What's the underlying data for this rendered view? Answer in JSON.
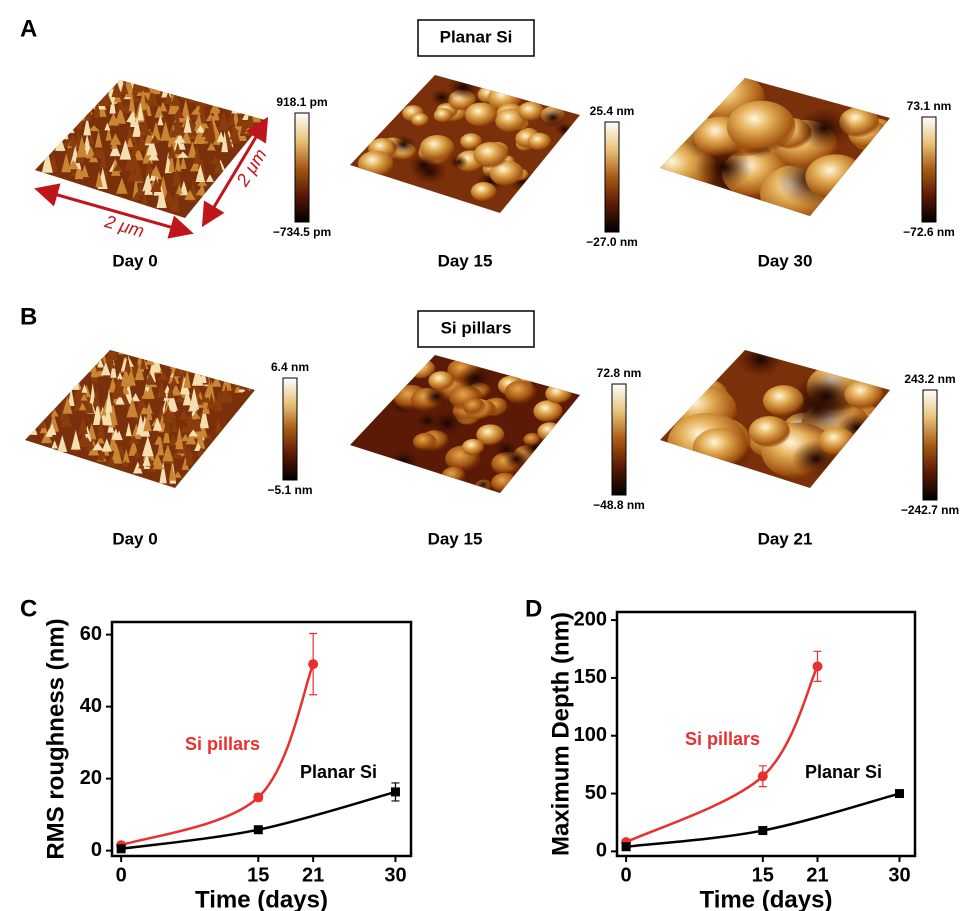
{
  "panel_a": {
    "label": "A",
    "title": "Planar Si",
    "scale_x": "2 μm",
    "scale_y": "2 μm",
    "images": [
      {
        "caption": "Day 0",
        "max": "918.1 pm",
        "min": "−734.5 pm"
      },
      {
        "caption": "Day 15",
        "max": "25.4 nm",
        "min": "−27.0 nm"
      },
      {
        "caption": "Day 30",
        "max": "73.1 nm",
        "min": "−72.6 nm"
      }
    ]
  },
  "panel_b": {
    "label": "B",
    "title": "Si pillars",
    "images": [
      {
        "caption": "Day 0",
        "max": "6.4 nm",
        "min": "−5.1 nm"
      },
      {
        "caption": "Day 15",
        "max": "72.8 nm",
        "min": "−48.8 nm"
      },
      {
        "caption": "Day 21",
        "max": "243.2 nm",
        "min": "−242.7 nm"
      }
    ]
  },
  "chart_data": [
    {
      "type": "line",
      "panel": "C",
      "xlabel": "Time (days)",
      "ylabel": "RMS roughness (nm)",
      "xlim": [
        -1,
        31.7
      ],
      "xticks": [
        0,
        15,
        21,
        30
      ],
      "ylim": [
        -1.5,
        63.5
      ],
      "yticks": [
        0,
        20,
        40,
        60
      ],
      "series": [
        {
          "name": "Si pillars",
          "color": "#e8302f",
          "marker": "circle",
          "x": [
            0,
            15,
            21
          ],
          "values": [
            1.5,
            14.8,
            51.8
          ],
          "errors": [
            0.3,
            1,
            8.5
          ]
        },
        {
          "name": "Planar Si",
          "color": "#000000",
          "marker": "square",
          "x": [
            0,
            15,
            30
          ],
          "values": [
            0.5,
            5.8,
            16.3
          ],
          "errors": [
            0.3,
            0.5,
            2.5
          ]
        }
      ]
    },
    {
      "type": "line",
      "panel": "D",
      "xlabel": "Time (days)",
      "ylabel": "Maximum Depth (nm)",
      "xlim": [
        -1,
        31.7
      ],
      "xticks": [
        0,
        15,
        21,
        30
      ],
      "ylim": [
        -4,
        207
      ],
      "yticks": [
        0,
        50,
        100,
        150,
        200
      ],
      "series": [
        {
          "name": "Si pillars",
          "color": "#e8302f",
          "marker": "circle",
          "x": [
            0,
            15,
            21
          ],
          "values": [
            8,
            65,
            160
          ],
          "errors": [
            2,
            9,
            13
          ]
        },
        {
          "name": "Planar Si",
          "color": "#000000",
          "marker": "square",
          "x": [
            0,
            15,
            30
          ],
          "values": [
            4,
            18,
            50
          ],
          "errors": [
            1,
            2,
            2
          ]
        }
      ]
    }
  ]
}
